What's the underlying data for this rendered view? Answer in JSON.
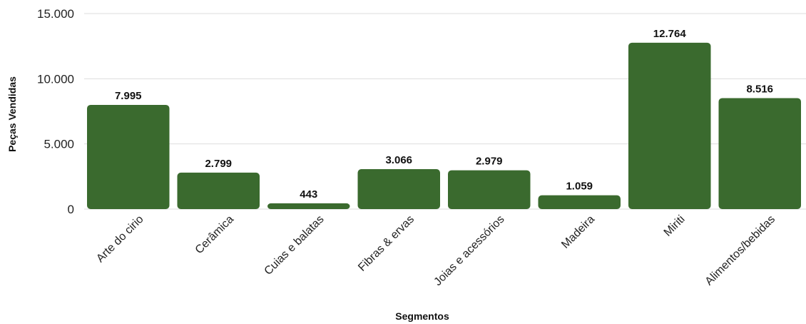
{
  "chart_data": {
    "type": "bar",
    "xlabel": "Segmentos",
    "ylabel": "Peças Vendidas",
    "ylim": [
      0,
      15000
    ],
    "yticks": [
      0,
      5000,
      10000,
      15000
    ],
    "ytick_labels": [
      "0",
      "5.000",
      "10.000",
      "15.000"
    ],
    "grid": true,
    "legend": "none",
    "bar_color": "#3a6a2e",
    "categories": [
      "Arte do cirio",
      "Cerâmica",
      "Cuias e balatas",
      "Fibras & ervas",
      "Joias e acessórios",
      "Madeira",
      "Miriti",
      "Alimentos/bebidas"
    ],
    "values": [
      7995,
      2799,
      443,
      3066,
      2979,
      1059,
      12764,
      8516
    ],
    "value_labels": [
      "7.995",
      "2.799",
      "443",
      "3.066",
      "2.979",
      "1.059",
      "12.764",
      "8.516"
    ]
  }
}
